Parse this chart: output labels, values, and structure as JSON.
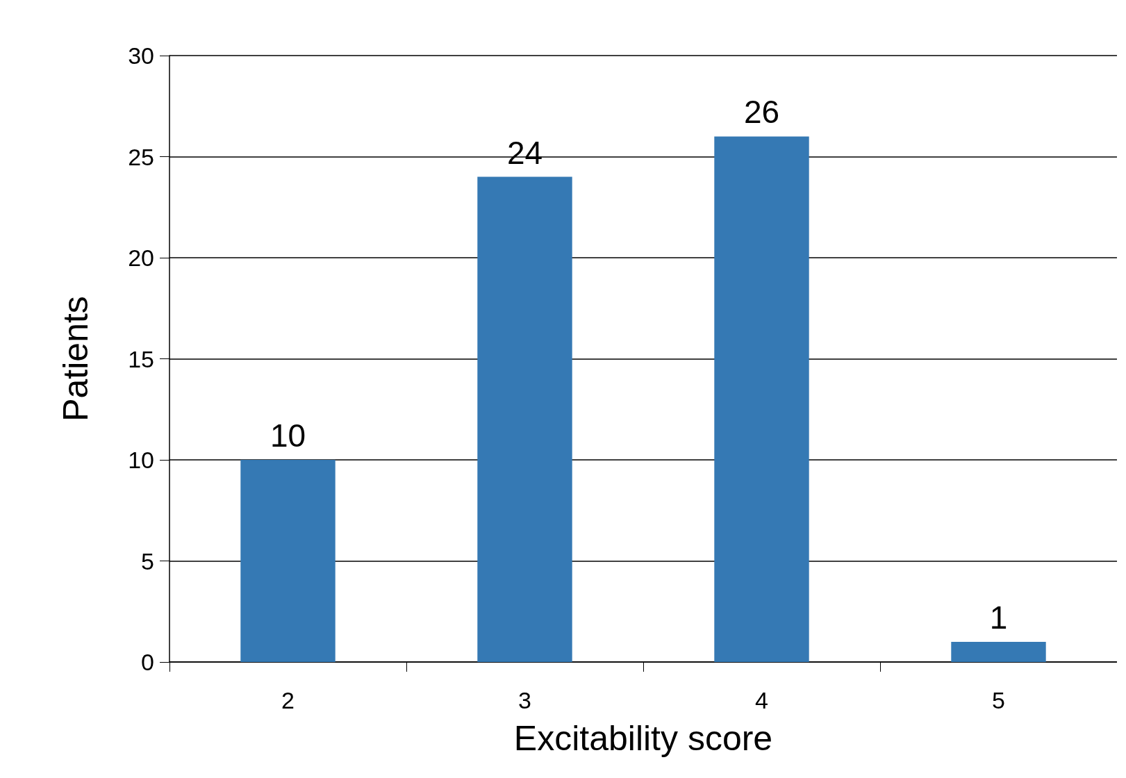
{
  "chart_data": {
    "type": "bar",
    "xlabel": "Excitability score",
    "ylabel": "Patients",
    "categories": [
      "2",
      "3",
      "4",
      "5"
    ],
    "values": [
      10,
      24,
      26,
      1
    ],
    "color": "#3579b4",
    "ylim": [
      0,
      30
    ],
    "yticks": [
      0,
      5,
      10,
      15,
      20,
      25,
      30
    ],
    "grid": "y",
    "data_labels": true
  }
}
